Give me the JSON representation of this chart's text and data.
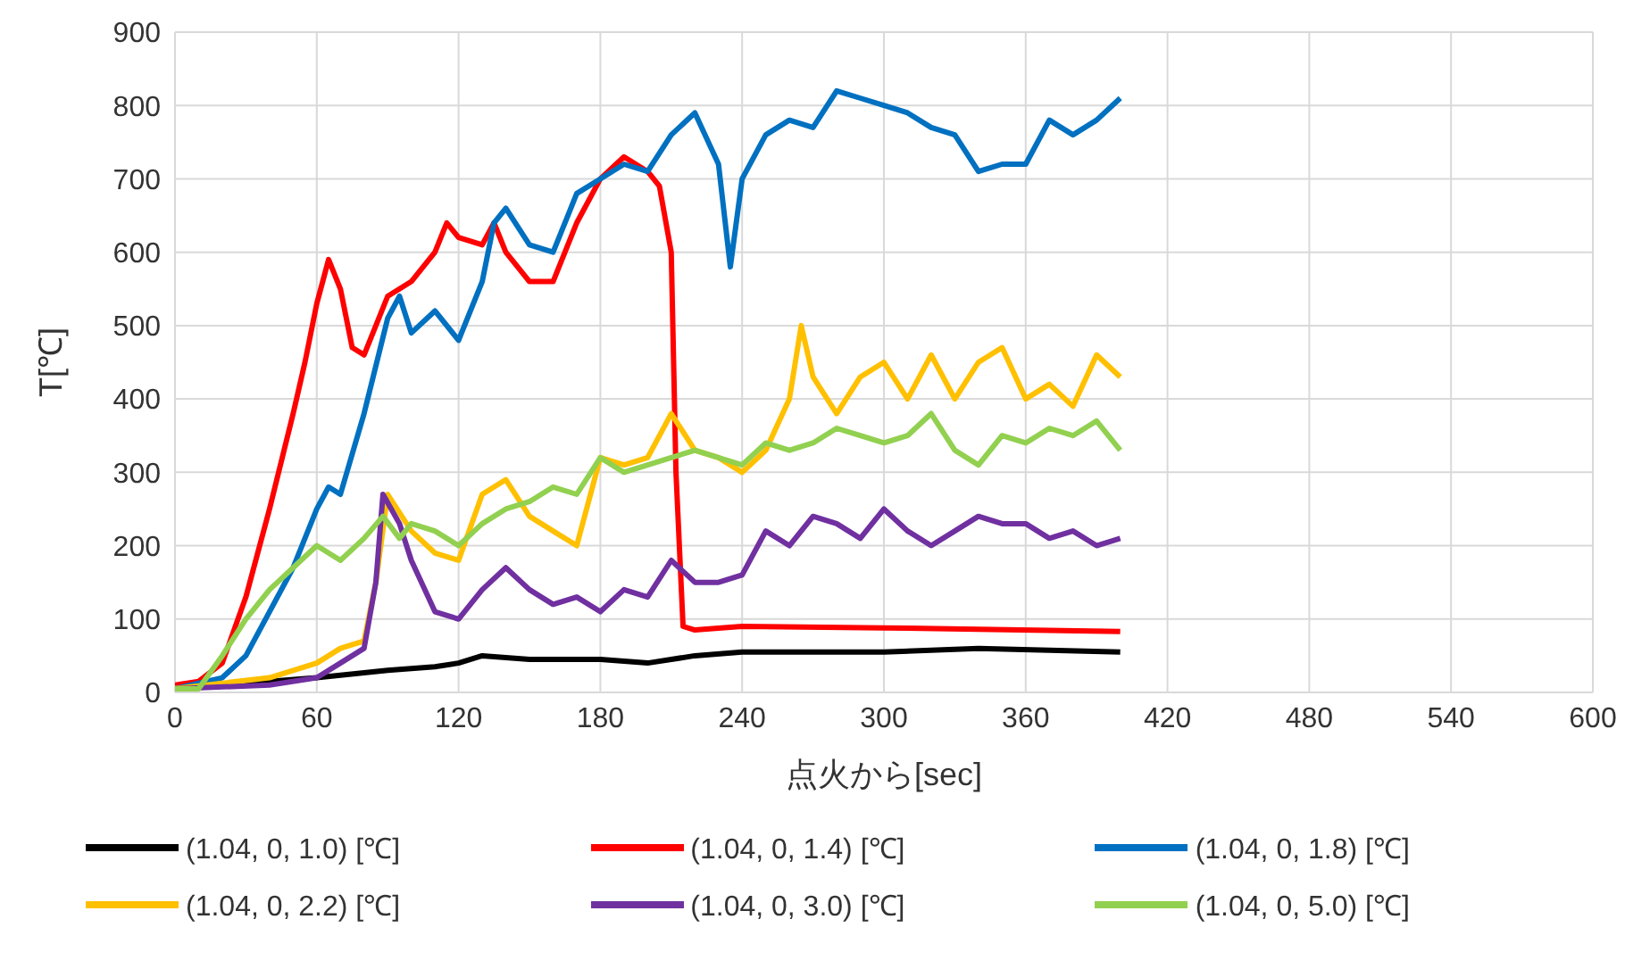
{
  "chart_data": {
    "type": "line",
    "xlabel": "点火から[sec]",
    "ylabel": "T[℃]",
    "xlim": [
      0,
      600
    ],
    "xticks": [
      0,
      60,
      120,
      180,
      240,
      300,
      360,
      420,
      480,
      540,
      600
    ],
    "ylim": [
      0,
      900
    ],
    "yticks": [
      0,
      100,
      200,
      300,
      400,
      500,
      600,
      700,
      800,
      900
    ],
    "grid": true,
    "legend": "bottom",
    "marker": "none",
    "line_style": "solid",
    "series": [
      {
        "name": "(1.04, 0, 1.0) [℃]",
        "color": "#000000",
        "x": [
          0,
          60,
          90,
          110,
          120,
          130,
          150,
          180,
          200,
          220,
          240,
          300,
          340,
          400
        ],
        "values": [
          5,
          20,
          30,
          35,
          40,
          50,
          45,
          45,
          40,
          50,
          55,
          55,
          60,
          55
        ]
      },
      {
        "name": "(1.04, 0, 1.4) [℃]",
        "color": "#ff0000",
        "x": [
          0,
          10,
          20,
          30,
          40,
          50,
          55,
          60,
          65,
          70,
          75,
          80,
          90,
          100,
          110,
          115,
          120,
          130,
          135,
          140,
          150,
          160,
          170,
          180,
          190,
          200,
          205,
          210,
          212,
          215,
          220,
          240,
          300,
          400
        ],
        "values": [
          10,
          15,
          40,
          130,
          250,
          380,
          450,
          530,
          590,
          550,
          470,
          460,
          540,
          560,
          600,
          640,
          620,
          610,
          640,
          600,
          560,
          560,
          640,
          700,
          730,
          710,
          690,
          600,
          300,
          90,
          85,
          90,
          88,
          83
        ]
      },
      {
        "name": "(1.04, 0, 1.8) [℃]",
        "color": "#0070c0",
        "x": [
          0,
          20,
          30,
          40,
          50,
          60,
          65,
          70,
          80,
          90,
          95,
          100,
          110,
          120,
          130,
          135,
          140,
          150,
          160,
          165,
          170,
          180,
          190,
          200,
          210,
          220,
          230,
          235,
          240,
          250,
          260,
          270,
          280,
          290,
          300,
          310,
          320,
          330,
          340,
          350,
          360,
          370,
          380,
          390,
          400
        ],
        "values": [
          5,
          20,
          50,
          110,
          170,
          250,
          280,
          270,
          380,
          510,
          540,
          490,
          520,
          480,
          560,
          640,
          660,
          610,
          600,
          640,
          680,
          700,
          720,
          710,
          760,
          790,
          720,
          580,
          700,
          760,
          780,
          770,
          820,
          810,
          800,
          790,
          770,
          760,
          710,
          720,
          720,
          780,
          760,
          780,
          810
        ]
      },
      {
        "name": "(1.04, 0, 2.2) [℃]",
        "color": "#ffc000",
        "x": [
          0,
          40,
          60,
          70,
          80,
          85,
          90,
          100,
          110,
          120,
          130,
          140,
          150,
          160,
          170,
          180,
          190,
          200,
          210,
          220,
          230,
          240,
          250,
          260,
          265,
          270,
          280,
          290,
          300,
          310,
          320,
          330,
          340,
          350,
          360,
          370,
          380,
          390,
          400
        ],
        "values": [
          5,
          20,
          40,
          60,
          70,
          150,
          270,
          220,
          190,
          180,
          270,
          290,
          240,
          220,
          200,
          320,
          310,
          320,
          380,
          330,
          320,
          300,
          330,
          400,
          500,
          430,
          380,
          430,
          450,
          400,
          460,
          400,
          450,
          470,
          400,
          420,
          390,
          460,
          430
        ]
      },
      {
        "name": "(1.04, 0, 3.0) [℃]",
        "color": "#7030a0",
        "x": [
          0,
          40,
          60,
          70,
          80,
          85,
          88,
          95,
          100,
          110,
          120,
          130,
          140,
          150,
          160,
          170,
          180,
          190,
          200,
          210,
          220,
          230,
          240,
          250,
          260,
          270,
          280,
          290,
          300,
          310,
          320,
          330,
          340,
          350,
          360,
          370,
          380,
          390,
          400
        ],
        "values": [
          5,
          10,
          20,
          40,
          60,
          150,
          270,
          230,
          180,
          110,
          100,
          140,
          170,
          140,
          120,
          130,
          110,
          140,
          130,
          180,
          150,
          150,
          160,
          220,
          200,
          240,
          230,
          210,
          250,
          220,
          200,
          220,
          240,
          230,
          230,
          210,
          220,
          200,
          210
        ]
      },
      {
        "name": "(1.04, 0, 5.0) [℃]",
        "color": "#92d050",
        "x": [
          0,
          10,
          20,
          30,
          40,
          50,
          60,
          70,
          80,
          88,
          95,
          100,
          110,
          120,
          130,
          140,
          150,
          160,
          170,
          180,
          190,
          200,
          210,
          220,
          240,
          250,
          260,
          270,
          280,
          290,
          300,
          310,
          320,
          330,
          340,
          350,
          360,
          370,
          380,
          390,
          400
        ],
        "values": [
          5,
          5,
          50,
          100,
          140,
          170,
          200,
          180,
          210,
          240,
          210,
          230,
          220,
          200,
          230,
          250,
          260,
          280,
          270,
          320,
          300,
          310,
          320,
          330,
          310,
          340,
          330,
          340,
          360,
          350,
          340,
          350,
          380,
          330,
          310,
          350,
          340,
          360,
          350,
          370,
          330
        ]
      }
    ]
  }
}
